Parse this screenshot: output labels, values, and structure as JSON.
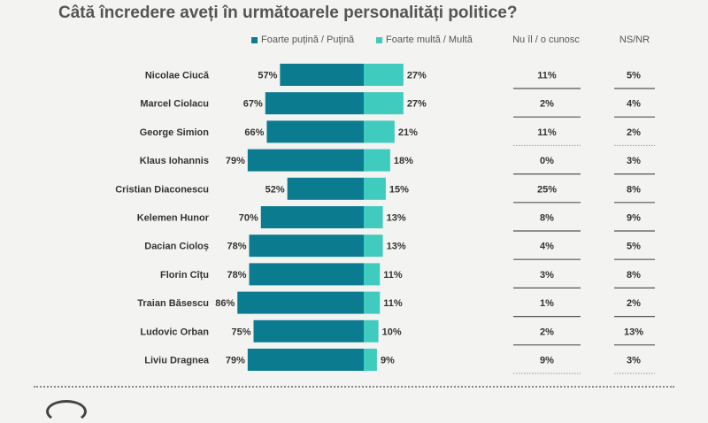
{
  "colors": {
    "low": "#0b7b8f",
    "high": "#3fcbbd",
    "text": "#333333",
    "title": "#555555"
  },
  "legend": {
    "low_label": "Foarte puțină / Puțină",
    "high_label": "Foarte multă / Multă"
  },
  "columns": {
    "unknown_label": "Nu îl / o cunosc",
    "nsnr_label": "NS/NR"
  },
  "chart_data": {
    "type": "bar",
    "title": "Câtă încredere aveți în următoarele personalități politice?",
    "categories": [
      "Nicolae Ciucă",
      "Marcel Ciolacu",
      "George Simion",
      "Klaus Iohannis",
      "Cristian Diaconescu",
      "Kelemen Hunor",
      "Dacian Cioloș",
      "Florin Cîțu",
      "Traian Băsescu",
      "Ludovic Orban",
      "Liviu Dragnea"
    ],
    "series": [
      {
        "name": "Foarte puțină / Puțină",
        "values": [
          57,
          67,
          66,
          79,
          52,
          70,
          78,
          78,
          86,
          75,
          79
        ]
      },
      {
        "name": "Foarte multă / Multă",
        "values": [
          27,
          27,
          21,
          18,
          15,
          13,
          13,
          11,
          11,
          10,
          9
        ]
      },
      {
        "name": "Nu îl / o cunosc",
        "values": [
          11,
          2,
          11,
          0,
          25,
          8,
          4,
          3,
          1,
          2,
          9
        ]
      },
      {
        "name": "NS/NR",
        "values": [
          5,
          4,
          2,
          3,
          8,
          9,
          5,
          8,
          2,
          13,
          3
        ]
      }
    ],
    "value_suffix": "%",
    "grid": false,
    "legend_position": "top"
  }
}
